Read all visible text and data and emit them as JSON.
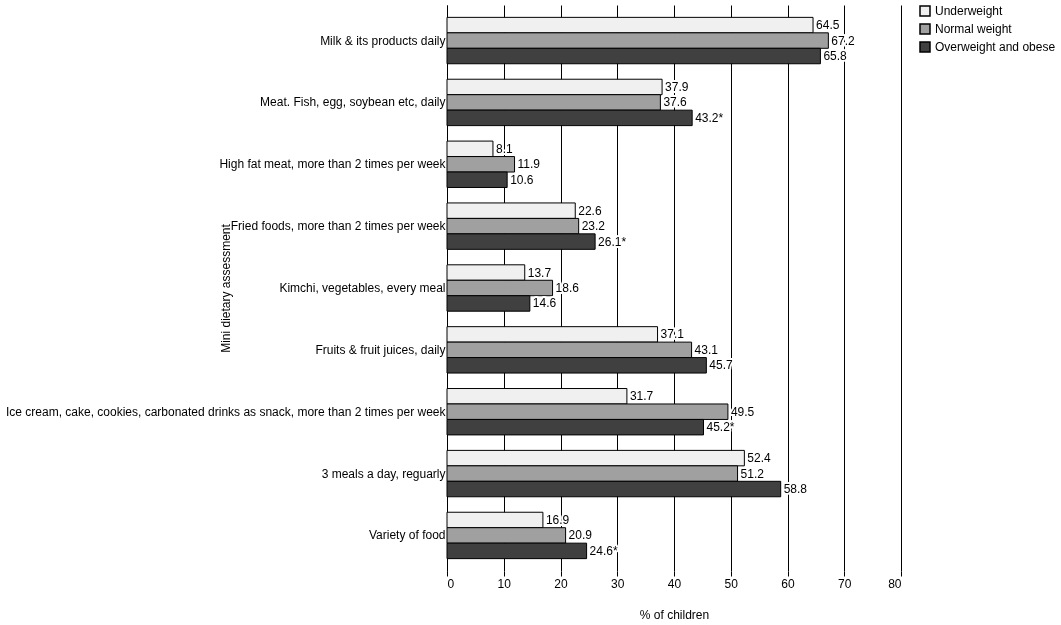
{
  "chart_data": {
    "type": "bar",
    "orientation": "horizontal",
    "ylabel": "Mini dietary assessment",
    "xlabel": "% of children",
    "categories": [
      "Milk & its products daily",
      "Meat. Fish, egg, soybean etc, daily",
      "High fat meat, more than 2 times per week",
      "Fried foods, more than 2 times per week",
      "Kimchi, vegetables, every meal",
      "Fruits & fruit juices, daily",
      "Ice cream, cake, cookies, carbonated drinks as snack, more than 2 times per week",
      "3 meals a day, reguarly",
      "Variety of food"
    ],
    "series": [
      {
        "name": "Underweight",
        "color": "#f0f0f0",
        "values": [
          64.5,
          37.9,
          8.1,
          22.6,
          13.7,
          37.1,
          31.7,
          52.4,
          16.9
        ],
        "value_labels": [
          "64.5",
          "37.9",
          "8.1",
          "22.6",
          "13.7",
          "37.1",
          "31.7",
          "52.4",
          "16.9"
        ]
      },
      {
        "name": "Normal weight",
        "color": "#a0a0a0",
        "values": [
          67.2,
          37.6,
          11.9,
          23.2,
          18.6,
          43.1,
          49.5,
          51.2,
          20.9
        ],
        "value_labels": [
          "67.2",
          "37.6",
          "11.9",
          "23.2",
          "18.6",
          "43.1",
          "49.5",
          "51.2",
          "20.9"
        ]
      },
      {
        "name": "Overweight and obese",
        "color": "#404040",
        "values": [
          65.8,
          43.2,
          10.6,
          26.1,
          14.6,
          45.7,
          45.2,
          58.8,
          24.6
        ],
        "value_labels": [
          "65.8",
          "43.2*",
          "10.6",
          "26.1*",
          "14.6",
          "45.7",
          "45.2*",
          "58.8",
          "24.6*"
        ]
      }
    ],
    "xlim": [
      0,
      80
    ],
    "xticks": [
      0,
      10,
      20,
      30,
      40,
      50,
      60,
      70,
      80
    ],
    "grid": "x",
    "legend": "right"
  }
}
